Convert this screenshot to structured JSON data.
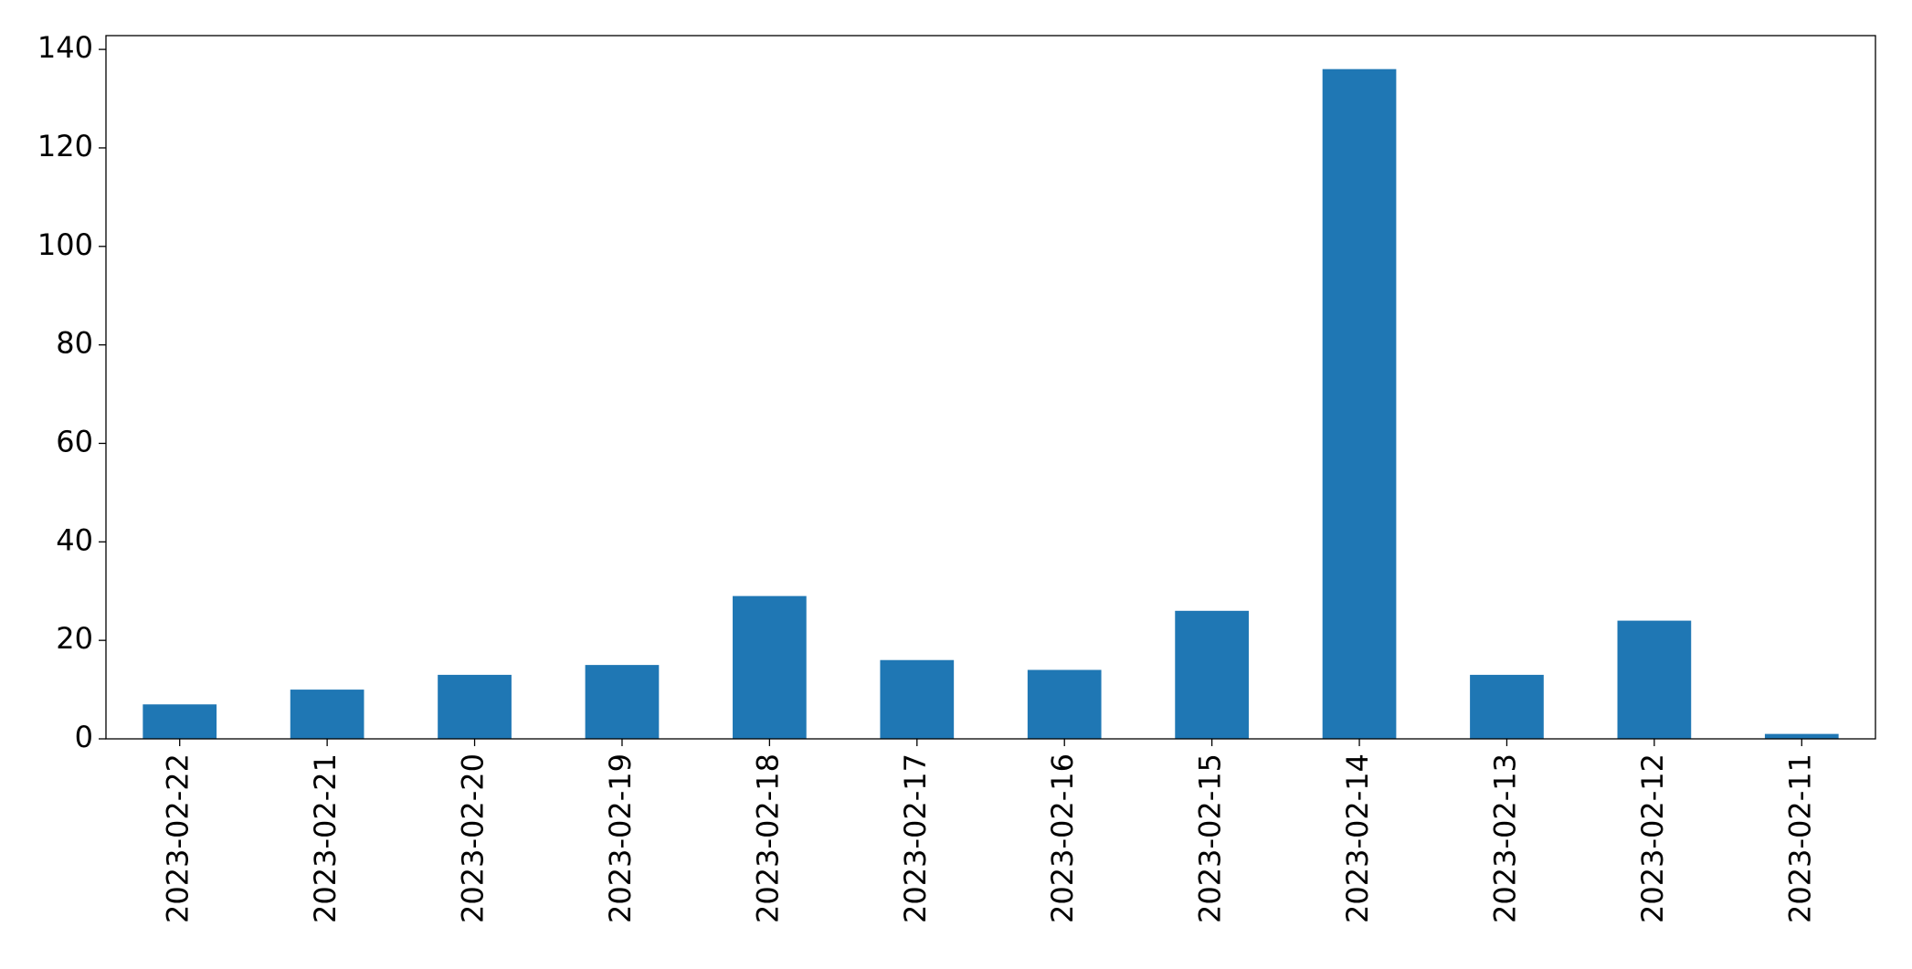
{
  "chart_data": {
    "type": "bar",
    "categories": [
      "2023-02-22",
      "2023-02-21",
      "2023-02-20",
      "2023-02-19",
      "2023-02-18",
      "2023-02-17",
      "2023-02-16",
      "2023-02-15",
      "2023-02-14",
      "2023-02-13",
      "2023-02-12",
      "2023-02-11"
    ],
    "values": [
      7,
      10,
      13,
      15,
      29,
      16,
      14,
      26,
      136,
      13,
      24,
      1
    ],
    "color": "#1f77b4",
    "ylim": [
      0,
      142.8
    ],
    "yticks": [
      0,
      20,
      40,
      60,
      80,
      100,
      120,
      140
    ],
    "grid": false
  }
}
